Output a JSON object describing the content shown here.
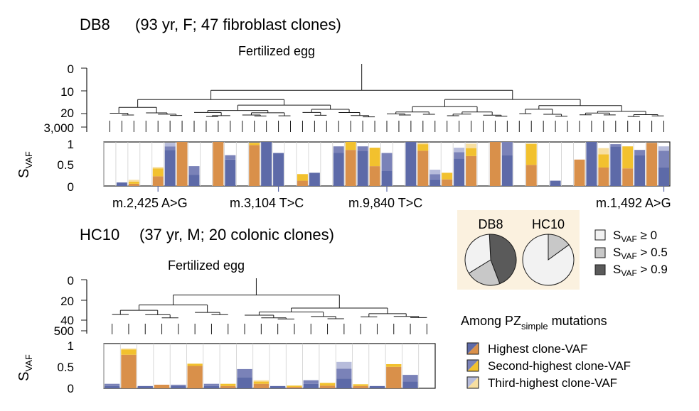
{
  "colors": {
    "primary_mid": "#7a82b8",
    "primary_dark": "#5d6aa8",
    "secondary": "#f2c12e",
    "tertiary": "#f7dfa0",
    "blue_light": "#b7bcdb",
    "orange": "#d9904a",
    "legend_bg": "#fbf1df",
    "pie_light": "#f2f2f2",
    "pie_mid": "#c8c8c8",
    "pie_dark": "#5a5a5a"
  },
  "chart_data": [
    {
      "type": "bar",
      "name": "db8",
      "title": "DB8",
      "subtitle": "(93 yr, F; 47 fibroblast clones)",
      "root_label": "Fertilized egg",
      "tree_yticks": [
        "0",
        "10",
        "20",
        "3,000"
      ],
      "ylabel": "S",
      "ylabel_sub": "VAF",
      "ylim": [
        0,
        1
      ],
      "yticks": [
        "1",
        "0.5",
        "0"
      ],
      "mutation_labels": [
        "m.2,425 A>G",
        "m.3,104 T>C",
        "m.9,840 T>C",
        "m.1,492 A>G"
      ],
      "mutation_at_clone": [
        4,
        14,
        23,
        46
      ],
      "series_note": "each clone: [top segment value, second segment value, third segment value, total height] colored by highest mutation of that clone",
      "clones": [
        {
          "h": 0,
          "a": 0.0,
          "b": 0.0,
          "c": 0.0,
          "k": "n"
        },
        {
          "h": 1,
          "a": 0.08,
          "b": 0.0,
          "c": 0.0,
          "k": "p"
        },
        {
          "h": 2,
          "a": 0.05,
          "b": 0.05,
          "c": 0.04,
          "k": "o"
        },
        {
          "h": 3,
          "a": 0.0,
          "b": 0.0,
          "c": 0.0,
          "k": "n"
        },
        {
          "h": 4,
          "a": 0.22,
          "b": 0.18,
          "c": 0.03,
          "k": "o"
        },
        {
          "h": 5,
          "a": 0.82,
          "b": 0.08,
          "c": 0.08,
          "k": "p"
        },
        {
          "h": 6,
          "a": 1.0,
          "b": 0.0,
          "c": 0.0,
          "k": "o"
        },
        {
          "h": 7,
          "a": 0.25,
          "b": 0.2,
          "c": 0.0,
          "k": "p"
        },
        {
          "h": 8,
          "a": 0.0,
          "b": 0.0,
          "c": 0.0,
          "k": "n"
        },
        {
          "h": 9,
          "a": 1.0,
          "b": 0.0,
          "c": 0.0,
          "k": "o"
        },
        {
          "h": 10,
          "a": 0.6,
          "b": 0.1,
          "c": 0.0,
          "k": "p"
        },
        {
          "h": 11,
          "a": 0.0,
          "b": 0.0,
          "c": 0.0,
          "k": "n"
        },
        {
          "h": 12,
          "a": 0.93,
          "b": 0.05,
          "c": 0.0,
          "k": "o"
        },
        {
          "h": 13,
          "a": 1.0,
          "b": 0.0,
          "c": 0.0,
          "k": "p"
        },
        {
          "h": 14,
          "a": 0.75,
          "b": 0.0,
          "c": 0.0,
          "k": "p"
        },
        {
          "h": 15,
          "a": 0.0,
          "b": 0.0,
          "c": 0.0,
          "k": "n"
        },
        {
          "h": 16,
          "a": 0.12,
          "b": 0.15,
          "c": 0.0,
          "k": "o"
        },
        {
          "h": 17,
          "a": 0.3,
          "b": 0.0,
          "c": 0.0,
          "k": "p"
        },
        {
          "h": 18,
          "a": 0.0,
          "b": 0.0,
          "c": 0.0,
          "k": "n"
        },
        {
          "h": 19,
          "a": 0.75,
          "b": 0.15,
          "c": 0.0,
          "k": "p"
        },
        {
          "h": 20,
          "a": 0.82,
          "b": 0.18,
          "c": 0.0,
          "k": "o"
        },
        {
          "h": 21,
          "a": 0.8,
          "b": 0.1,
          "c": 0.0,
          "k": "p"
        },
        {
          "h": 22,
          "a": 0.45,
          "b": 0.42,
          "c": 0.0,
          "k": "o"
        },
        {
          "h": 23,
          "a": 0.35,
          "b": 0.4,
          "c": 0.0,
          "k": "p"
        },
        {
          "h": 24,
          "a": 0.0,
          "b": 0.0,
          "c": 0.0,
          "k": "n"
        },
        {
          "h": 25,
          "a": 1.0,
          "b": 0.0,
          "c": 0.0,
          "k": "p"
        },
        {
          "h": 26,
          "a": 0.8,
          "b": 0.15,
          "c": 0.03,
          "k": "o"
        },
        {
          "h": 27,
          "a": 0.15,
          "b": 0.12,
          "c": 0.1,
          "k": "p"
        },
        {
          "h": 28,
          "a": 0.15,
          "b": 0.15,
          "c": 0.0,
          "k": "o"
        },
        {
          "h": 29,
          "a": 0.62,
          "b": 0.15,
          "c": 0.1,
          "k": "p"
        },
        {
          "h": 30,
          "a": 0.68,
          "b": 0.18,
          "c": 0.1,
          "k": "o"
        },
        {
          "h": 31,
          "a": 0.0,
          "b": 0.0,
          "c": 0.0,
          "k": "n"
        },
        {
          "h": 32,
          "a": 1.0,
          "b": 0.0,
          "c": 0.0,
          "k": "o"
        },
        {
          "h": 33,
          "a": 0.7,
          "b": 0.3,
          "c": 0.0,
          "k": "p"
        },
        {
          "h": 34,
          "a": 0.0,
          "b": 0.0,
          "c": 0.0,
          "k": "n"
        },
        {
          "h": 35,
          "a": 0.48,
          "b": 0.48,
          "c": 0.0,
          "k": "o"
        },
        {
          "h": 36,
          "a": 0.0,
          "b": 0.0,
          "c": 0.0,
          "k": "n"
        },
        {
          "h": 37,
          "a": 0.12,
          "b": 0.0,
          "c": 0.0,
          "k": "p"
        },
        {
          "h": 38,
          "a": 0.0,
          "b": 0.0,
          "c": 0.0,
          "k": "n"
        },
        {
          "h": 39,
          "a": 0.6,
          "b": 0.0,
          "c": 0.0,
          "k": "o"
        },
        {
          "h": 40,
          "a": 1.0,
          "b": 0.0,
          "c": 0.0,
          "k": "p"
        },
        {
          "h": 41,
          "a": 0.42,
          "b": 0.3,
          "c": 0.14,
          "k": "o"
        },
        {
          "h": 42,
          "a": 0.9,
          "b": 0.05,
          "c": 0.0,
          "k": "p"
        },
        {
          "h": 43,
          "a": 0.4,
          "b": 0.5,
          "c": 0.0,
          "k": "o"
        },
        {
          "h": 44,
          "a": 0.7,
          "b": 0.12,
          "c": 0.0,
          "k": "p"
        },
        {
          "h": 45,
          "a": 0.98,
          "b": 0.0,
          "c": 0.0,
          "k": "o"
        },
        {
          "h": 46,
          "a": 0.42,
          "b": 0.38,
          "c": 0.1,
          "k": "p"
        }
      ]
    },
    {
      "type": "bar",
      "name": "hc10",
      "title": "HC10",
      "subtitle": "(37 yr, M; 20 colonic clones)",
      "root_label": "Fertilized egg",
      "tree_yticks": [
        "0",
        "20",
        "40",
        "500"
      ],
      "ylabel": "S",
      "ylabel_sub": "VAF",
      "ylim": [
        0,
        1
      ],
      "yticks": [
        "1",
        "0.5",
        "0"
      ],
      "clones": [
        {
          "a": 0.05,
          "b": 0.05,
          "c": 0.0,
          "k": "p"
        },
        {
          "a": 0.75,
          "b": 0.12,
          "c": 0.02,
          "k": "o"
        },
        {
          "a": 0.05,
          "b": 0.0,
          "c": 0.0,
          "k": "p"
        },
        {
          "a": 0.08,
          "b": 0.0,
          "c": 0.0,
          "k": "o"
        },
        {
          "a": 0.05,
          "b": 0.03,
          "c": 0.0,
          "k": "p"
        },
        {
          "a": 0.5,
          "b": 0.05,
          "c": 0.0,
          "k": "o"
        },
        {
          "a": 0.05,
          "b": 0.05,
          "c": 0.0,
          "k": "p"
        },
        {
          "a": 0.05,
          "b": 0.05,
          "c": 0.0,
          "k": "o"
        },
        {
          "a": 0.25,
          "b": 0.18,
          "c": 0.0,
          "k": "p"
        },
        {
          "a": 0.1,
          "b": 0.05,
          "c": 0.03,
          "k": "o"
        },
        {
          "a": 0.05,
          "b": 0.0,
          "c": 0.0,
          "k": "p"
        },
        {
          "a": 0.03,
          "b": 0.03,
          "c": 0.0,
          "k": "o"
        },
        {
          "a": 0.1,
          "b": 0.08,
          "c": 0.0,
          "k": "p"
        },
        {
          "a": 0.06,
          "b": 0.06,
          "c": 0.0,
          "k": "o"
        },
        {
          "a": 0.22,
          "b": 0.22,
          "c": 0.15,
          "k": "p"
        },
        {
          "a": 0.05,
          "b": 0.04,
          "c": 0.0,
          "k": "o"
        },
        {
          "a": 0.05,
          "b": 0.0,
          "c": 0.0,
          "k": "p"
        },
        {
          "a": 0.48,
          "b": 0.06,
          "c": 0.0,
          "k": "o"
        },
        {
          "a": 0.15,
          "b": 0.15,
          "c": 0.0,
          "k": "p"
        },
        {
          "a": 0.0,
          "b": 0.0,
          "c": 0.0,
          "k": "n"
        }
      ]
    },
    {
      "type": "pie",
      "name": "pies",
      "pies": [
        {
          "label": "DB8",
          "slices": [
            0.33,
            0.22,
            0.45
          ]
        },
        {
          "label": "HC10",
          "slices": [
            0.85,
            0.15,
            0.0
          ]
        }
      ],
      "legend": [
        {
          "s": "S",
          "sub": "VAF",
          "rest": " ≥ 0"
        },
        {
          "s": "S",
          "sub": "VAF",
          "rest": " > 0.5"
        },
        {
          "s": "S",
          "sub": "VAF",
          "rest": " > 0.9"
        }
      ]
    }
  ],
  "legend_mutations": {
    "title_pre": "Among PZ",
    "title_sub": "simple",
    "title_post": " mutations",
    "items": [
      "Highest clone-VAF",
      "Second-highest clone-VAF",
      "Third-highest clone-VAF"
    ]
  }
}
